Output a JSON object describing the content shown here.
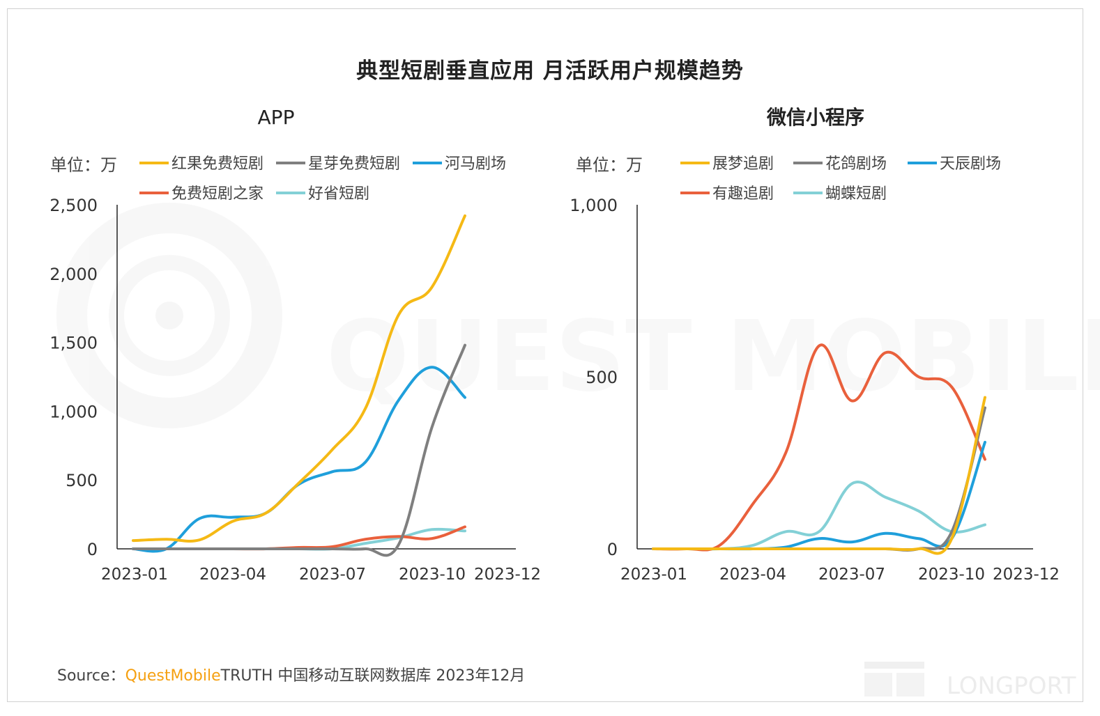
{
  "title": "典型短剧垂直应用 月活跃用户规模趋势",
  "source": {
    "label": "Source：",
    "brand": "QuestMobile",
    "text": "TRUTH 中国移动互联网数据库 2023年12月"
  },
  "watermarks": {
    "questmobile": "QUEST MOBILE",
    "longport": "LONGPORT"
  },
  "chart_data": [
    {
      "type": "line",
      "title": "APP",
      "unit_label": "单位：万",
      "ylim": [
        0,
        2500
      ],
      "yticks": [
        0,
        500,
        1000,
        1500,
        2000,
        2500
      ],
      "ytick_labels": [
        "0",
        "500",
        "1,000",
        "1,500",
        "2,000",
        "2,500"
      ],
      "x": [
        "2023-01",
        "2023-02",
        "2023-03",
        "2023-04",
        "2023-05",
        "2023-06",
        "2023-07",
        "2023-08",
        "2023-09",
        "2023-10",
        "2023-11",
        "2023-12"
      ],
      "xtick_labels": [
        "2023-01",
        "2023-04",
        "2023-07",
        "2023-10",
        "2023-12"
      ],
      "xtick_index": [
        0,
        3,
        6,
        9,
        11
      ],
      "series": [
        {
          "name": "红果免费短剧",
          "color": "#f5b915",
          "values": [
            60,
            70,
            65,
            200,
            260,
            480,
            720,
            1020,
            1700,
            1900,
            2420,
            null
          ]
        },
        {
          "name": "星芽免费短剧",
          "color": "#7f7f7f",
          "values": [
            0,
            0,
            0,
            0,
            0,
            0,
            0,
            0,
            30,
            880,
            1480,
            null
          ]
        },
        {
          "name": "河马剧场",
          "color": "#1f9fdb",
          "values": [
            0,
            0,
            220,
            230,
            260,
            470,
            560,
            630,
            1080,
            1320,
            1100,
            null
          ]
        },
        {
          "name": "免费短剧之家",
          "color": "#e9603c",
          "values": [
            0,
            0,
            0,
            0,
            0,
            10,
            15,
            70,
            90,
            75,
            160,
            null
          ]
        },
        {
          "name": "好省短剧",
          "color": "#83d0d6",
          "values": [
            0,
            0,
            0,
            0,
            0,
            0,
            0,
            40,
            80,
            140,
            130,
            null
          ]
        }
      ]
    },
    {
      "type": "line",
      "title": "微信小程序",
      "unit_label": "单位：万",
      "ylim": [
        0,
        1000
      ],
      "yticks": [
        0,
        500,
        1000
      ],
      "ytick_labels": [
        "0",
        "500",
        "1,000"
      ],
      "x": [
        "2023-01",
        "2023-02",
        "2023-03",
        "2023-04",
        "2023-05",
        "2023-06",
        "2023-07",
        "2023-08",
        "2023-09",
        "2023-10",
        "2023-11",
        "2023-12"
      ],
      "xtick_labels": [
        "2023-01",
        "2023-04",
        "2023-07",
        "2023-10",
        "2023-12"
      ],
      "xtick_index": [
        0,
        3,
        6,
        9,
        11
      ],
      "series": [
        {
          "name": "展梦追剧",
          "color": "#f5b915",
          "values": [
            0,
            0,
            0,
            0,
            0,
            0,
            0,
            0,
            0,
            30,
            440,
            null
          ]
        },
        {
          "name": "花鸽剧场",
          "color": "#7f7f7f",
          "values": [
            0,
            0,
            0,
            0,
            0,
            0,
            0,
            0,
            0,
            50,
            410,
            null
          ]
        },
        {
          "name": "天辰剧场",
          "color": "#1f9fdb",
          "values": [
            0,
            0,
            0,
            0,
            5,
            30,
            20,
            45,
            30,
            30,
            310,
            null
          ]
        },
        {
          "name": "有趣追剧",
          "color": "#e9603c",
          "values": [
            0,
            0,
            10,
            130,
            280,
            590,
            430,
            570,
            500,
            470,
            260,
            null
          ]
        },
        {
          "name": "蝴蝶短剧",
          "color": "#83d0d6",
          "values": [
            0,
            0,
            0,
            10,
            50,
            50,
            190,
            150,
            110,
            50,
            70,
            null
          ]
        }
      ]
    }
  ]
}
